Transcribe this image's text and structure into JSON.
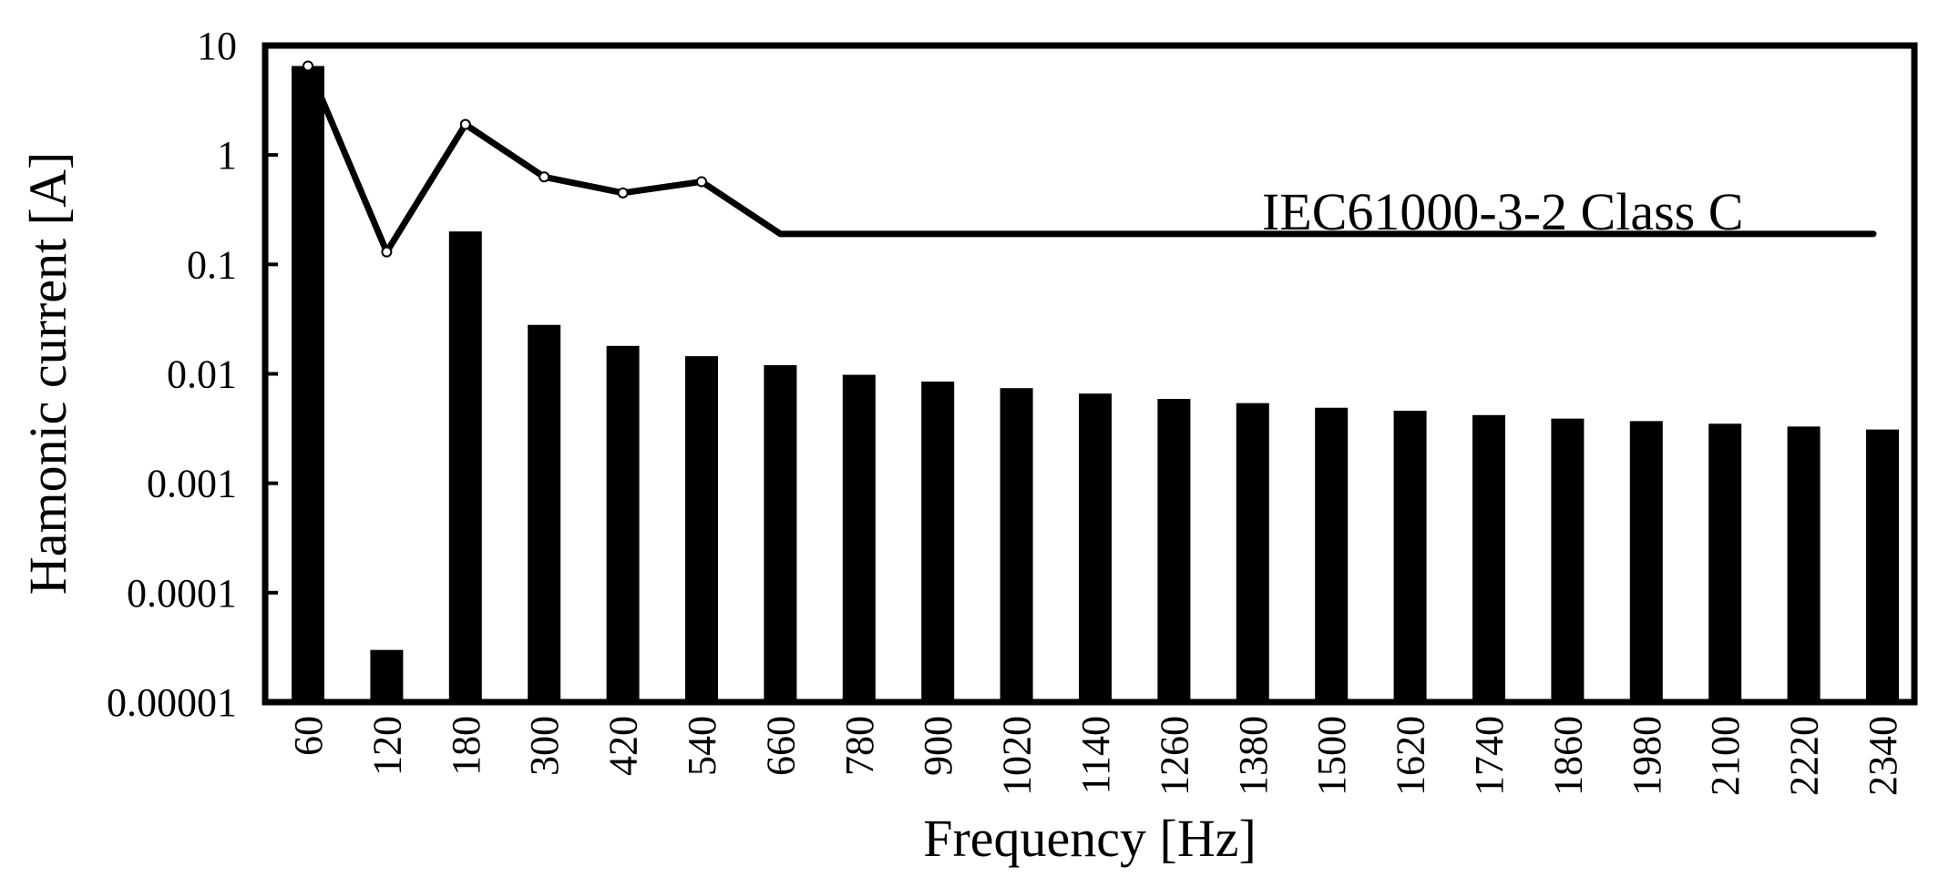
{
  "chart_data": {
    "type": "bar",
    "xlabel": "Frequency [Hz]",
    "ylabel": "Hamonic current [A]",
    "yscale": "log",
    "ylim": [
      1e-05,
      10
    ],
    "yticks": [
      "10",
      "1",
      "0.1",
      "0.01",
      "0.001",
      "0.0001",
      "0.00001"
    ],
    "ytick_values": [
      10,
      1,
      0.1,
      0.01,
      0.001,
      0.0001,
      1e-05
    ],
    "categories": [
      "60",
      "120",
      "180",
      "300",
      "420",
      "540",
      "660",
      "780",
      "900",
      "1020",
      "1140",
      "1260",
      "1380",
      "1500",
      "1620",
      "1740",
      "1860",
      "1980",
      "2100",
      "2220",
      "2340"
    ],
    "series": [
      {
        "type": "bar",
        "values": [
          6.5,
          3e-05,
          0.2,
          0.028,
          0.018,
          0.0145,
          0.012,
          0.0098,
          0.0085,
          0.0074,
          0.0066,
          0.0059,
          0.0054,
          0.0049,
          0.0046,
          0.0042,
          0.0039,
          0.0037,
          0.0035,
          0.0033,
          0.0031
        ],
        "color": "#000000"
      },
      {
        "type": "line",
        "name": "IEC61000-3-2 Class C",
        "values": [
          6.5,
          0.13,
          1.9,
          0.63,
          0.45,
          0.57,
          0.19,
          0.19,
          0.19,
          0.19,
          0.19,
          0.19,
          0.19,
          0.19,
          0.19,
          0.19,
          0.19,
          0.19,
          0.19,
          0.19,
          0.19
        ],
        "color": "#000000"
      }
    ],
    "annotations": [
      "IEC61000-3-2 Class C"
    ],
    "grid": false,
    "legend": "none"
  }
}
